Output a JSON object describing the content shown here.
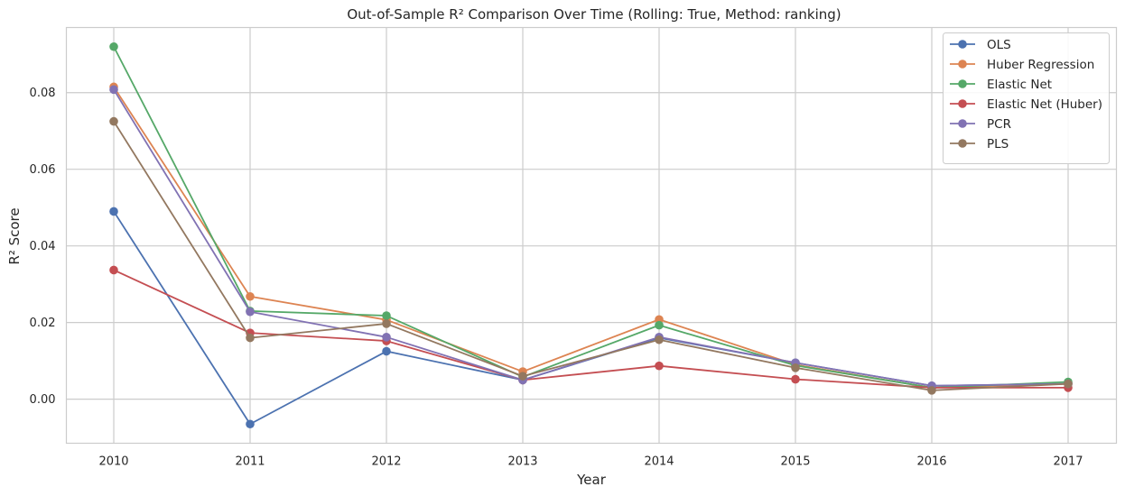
{
  "chart_data": {
    "type": "line",
    "title": "Out-of-Sample R² Comparison Over Time (Rolling: True, Method: ranking)",
    "xlabel": "Year",
    "ylabel": "R² Score",
    "x": [
      "2010",
      "2011",
      "2012",
      "2013",
      "2014",
      "2015",
      "2016",
      "2017"
    ],
    "ylim": [
      -0.0115,
      0.097
    ],
    "yticks": [
      "0.00",
      "0.02",
      "0.04",
      "0.06",
      "0.08"
    ],
    "grid": true,
    "legend_position": "top-right",
    "series": [
      {
        "name": "OLS",
        "color": "#4c72b0",
        "values": [
          0.049,
          -0.0065,
          0.0125,
          0.005,
          0.016,
          0.0095,
          0.0035,
          0.004
        ]
      },
      {
        "name": "Huber Regression",
        "color": "#dd8452",
        "values": [
          0.0815,
          0.0268,
          0.0207,
          0.0072,
          0.0208,
          0.009,
          0.003,
          0.004
        ]
      },
      {
        "name": "Elastic Net",
        "color": "#55a868",
        "values": [
          0.092,
          0.023,
          0.0218,
          0.0058,
          0.0193,
          0.0088,
          0.003,
          0.0045
        ]
      },
      {
        "name": "Elastic Net (Huber)",
        "color": "#c44e52",
        "values": [
          0.0337,
          0.0173,
          0.0152,
          0.005,
          0.0087,
          0.0052,
          0.003,
          0.003
        ]
      },
      {
        "name": "PCR",
        "color": "#8172b3",
        "values": [
          0.0808,
          0.0228,
          0.0162,
          0.005,
          0.0162,
          0.0095,
          0.0035,
          0.004
        ]
      },
      {
        "name": "PLS",
        "color": "#937860",
        "values": [
          0.0725,
          0.016,
          0.0197,
          0.006,
          0.0155,
          0.0082,
          0.0023,
          0.004
        ]
      }
    ]
  }
}
